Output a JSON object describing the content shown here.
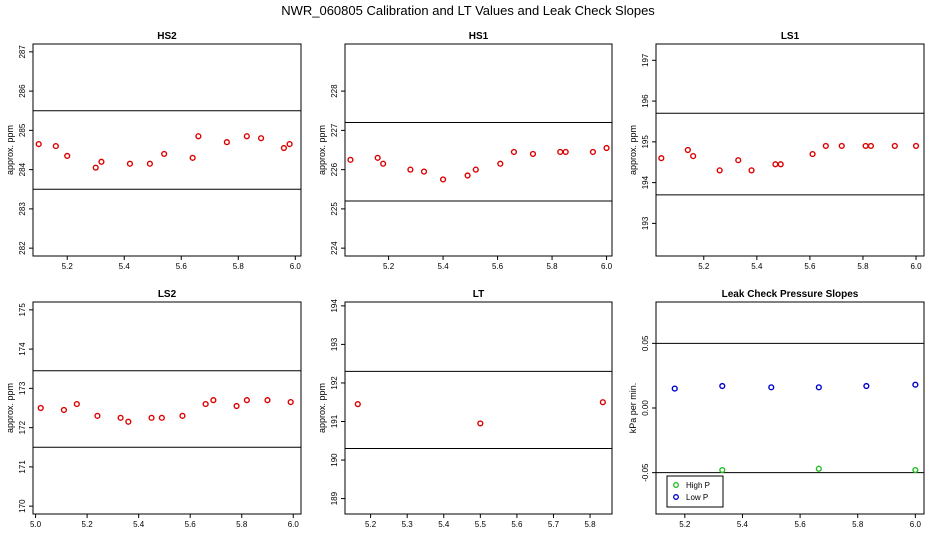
{
  "title": "NWR_060805  Calibration and LT Values and Leak Check Slopes",
  "colors": {
    "main": "#dd0000",
    "high_p": "#22bb22",
    "low_p": "#0000cc",
    "axis": "#000000"
  },
  "chart_data": [
    {
      "type": "scatter",
      "title": "HS2",
      "ylabel": "approx. ppm",
      "xlim": [
        5.08,
        6.02
      ],
      "ylim": [
        281.8,
        287.2
      ],
      "xticks": [
        5.2,
        5.4,
        5.6,
        5.8,
        6.0
      ],
      "xtick_labels": [
        "5.2",
        "5.4",
        "5.6",
        "5.8",
        "6.0"
      ],
      "yticks": [
        282,
        283,
        284,
        285,
        286,
        287
      ],
      "ytick_labels": [
        "282",
        "283",
        "284",
        "285",
        "286",
        "287"
      ],
      "hlines": [
        285.5,
        283.5
      ],
      "series": [
        {
          "color": "main",
          "x": [
            5.1,
            5.16,
            5.2,
            5.3,
            5.32,
            5.42,
            5.49,
            5.54,
            5.64,
            5.66,
            5.76,
            5.83,
            5.88,
            5.96,
            5.98
          ],
          "y": [
            284.65,
            284.6,
            284.35,
            284.05,
            284.2,
            284.15,
            284.15,
            284.4,
            284.3,
            284.85,
            284.7,
            284.85,
            284.8,
            284.55,
            284.65
          ]
        }
      ]
    },
    {
      "type": "scatter",
      "title": "HS1",
      "ylabel": "approx. ppm",
      "xlim": [
        5.04,
        6.02
      ],
      "ylim": [
        223.8,
        229.2
      ],
      "xticks": [
        5.2,
        5.4,
        5.6,
        5.8,
        6.0
      ],
      "xtick_labels": [
        "5.2",
        "5.4",
        "5.6",
        "5.8",
        "6.0"
      ],
      "yticks": [
        224,
        225,
        226,
        227,
        228
      ],
      "ytick_labels": [
        "224",
        "225",
        "226",
        "227",
        "228"
      ],
      "hlines": [
        227.2,
        225.2
      ],
      "series": [
        {
          "color": "main",
          "x": [
            5.06,
            5.16,
            5.18,
            5.28,
            5.33,
            5.4,
            5.49,
            5.52,
            5.61,
            5.66,
            5.73,
            5.83,
            5.85,
            5.95,
            6.0
          ],
          "y": [
            226.25,
            226.3,
            226.15,
            226.0,
            225.95,
            225.75,
            225.85,
            226.0,
            226.15,
            226.45,
            226.4,
            226.45,
            226.45,
            226.45,
            226.55
          ]
        }
      ]
    },
    {
      "type": "scatter",
      "title": "LS1",
      "ylabel": "approx. ppm",
      "xlim": [
        5.02,
        6.03
      ],
      "ylim": [
        192.2,
        197.4
      ],
      "xticks": [
        5.2,
        5.4,
        5.6,
        5.8,
        6.0
      ],
      "xtick_labels": [
        "5.2",
        "5.4",
        "5.6",
        "5.8",
        "6.0"
      ],
      "yticks": [
        193,
        194,
        195,
        196,
        197
      ],
      "ytick_labels": [
        "193",
        "194",
        "195",
        "196",
        "197"
      ],
      "hlines": [
        195.7,
        193.7
      ],
      "series": [
        {
          "color": "main",
          "x": [
            5.04,
            5.14,
            5.16,
            5.26,
            5.33,
            5.38,
            5.47,
            5.49,
            5.61,
            5.66,
            5.72,
            5.81,
            5.83,
            5.92,
            6.0
          ],
          "y": [
            194.6,
            194.8,
            194.65,
            194.3,
            194.55,
            194.3,
            194.45,
            194.45,
            194.7,
            194.9,
            194.9,
            194.9,
            194.9,
            194.9,
            194.9
          ]
        }
      ]
    },
    {
      "type": "scatter",
      "title": "LS2",
      "ylabel": "approx. ppm",
      "xlim": [
        4.99,
        6.03
      ],
      "ylim": [
        169.8,
        175.2
      ],
      "xticks": [
        5.0,
        5.2,
        5.4,
        5.6,
        5.8,
        6.0
      ],
      "xtick_labels": [
        "5.0",
        "5.2",
        "5.4",
        "5.6",
        "5.8",
        "6.0"
      ],
      "yticks": [
        170,
        171,
        172,
        173,
        174,
        175
      ],
      "ytick_labels": [
        "170",
        "171",
        "172",
        "173",
        "174",
        "175"
      ],
      "hlines": [
        173.45,
        171.5
      ],
      "series": [
        {
          "color": "main",
          "x": [
            5.02,
            5.11,
            5.16,
            5.24,
            5.33,
            5.36,
            5.45,
            5.49,
            5.57,
            5.66,
            5.69,
            5.78,
            5.82,
            5.9,
            5.99
          ],
          "y": [
            172.5,
            172.45,
            172.6,
            172.3,
            172.25,
            172.15,
            172.25,
            172.25,
            172.3,
            172.6,
            172.7,
            172.55,
            172.7,
            172.7,
            172.65
          ]
        }
      ]
    },
    {
      "type": "scatter",
      "title": "LT",
      "ylabel": "approx. ppm",
      "xlim": [
        5.13,
        5.86
      ],
      "ylim": [
        188.6,
        194.1
      ],
      "xticks": [
        5.2,
        5.3,
        5.4,
        5.5,
        5.6,
        5.7,
        5.8
      ],
      "xtick_labels": [
        "5.2",
        "5.3",
        "5.4",
        "5.5",
        "5.6",
        "5.7",
        "5.8"
      ],
      "yticks": [
        189,
        190,
        191,
        192,
        193,
        194
      ],
      "ytick_labels": [
        "189",
        "190",
        "191",
        "192",
        "193",
        "194"
      ],
      "hlines": [
        192.3,
        190.3
      ],
      "series": [
        {
          "color": "main",
          "x": [
            5.165,
            5.5,
            5.835
          ],
          "y": [
            191.45,
            190.95,
            191.5
          ]
        }
      ]
    },
    {
      "type": "scatter",
      "title": "Leak Check Pressure Slopes",
      "ylabel": "kPa per min.",
      "xlim": [
        5.1,
        6.03
      ],
      "ylim": [
        -0.082,
        0.082
      ],
      "xticks": [
        5.2,
        5.4,
        5.6,
        5.8,
        6.0
      ],
      "xtick_labels": [
        "5.2",
        "5.4",
        "5.6",
        "5.8",
        "6.0"
      ],
      "yticks": [
        -0.05,
        0.0,
        0.05
      ],
      "ytick_labels": [
        "-0.05",
        "0.00",
        "0.05"
      ],
      "hlines": [
        0.05,
        -0.05
      ],
      "legend": {
        "position": "bottom-left",
        "entries": [
          {
            "label": "High P",
            "color": "high_p"
          },
          {
            "label": "Low P",
            "color": "low_p"
          }
        ]
      },
      "series": [
        {
          "name": "High P",
          "color": "high_p",
          "x": [
            5.33,
            5.665,
            6.0
          ],
          "y": [
            -0.048,
            -0.047,
            -0.048
          ]
        },
        {
          "name": "Low P",
          "color": "low_p",
          "x": [
            5.165,
            5.33,
            5.5,
            5.665,
            5.83,
            6.0
          ],
          "y": [
            0.015,
            0.017,
            0.016,
            0.016,
            0.017,
            0.018
          ]
        }
      ]
    }
  ]
}
